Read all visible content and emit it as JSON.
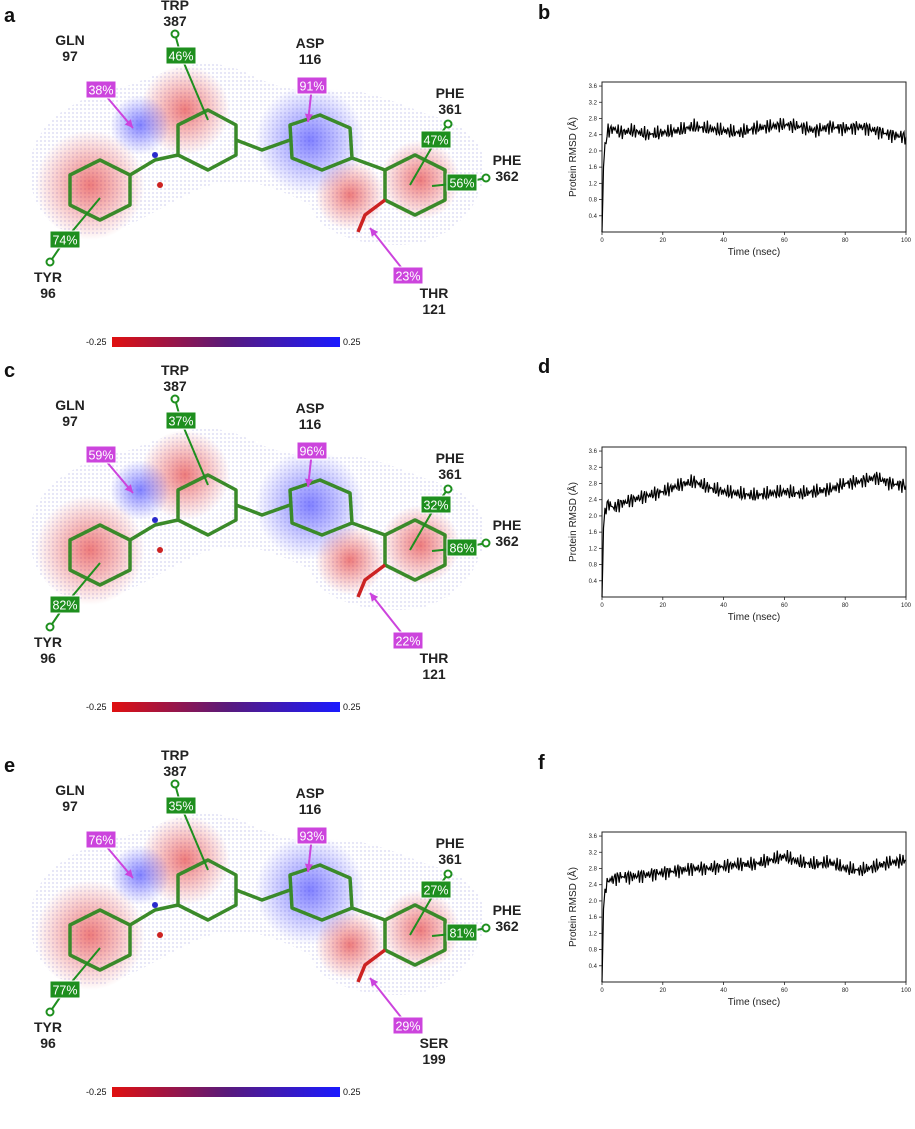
{
  "colors": {
    "green": "#1e8f1e",
    "magenta": "#cc44dd",
    "negative": "#e01010",
    "positive": "#1a1aff"
  },
  "scale_bar": {
    "min": "-0.25",
    "max": "0.25"
  },
  "panels": [
    {
      "letter": "a",
      "residues": {
        "gln": [
          "GLN",
          "97"
        ],
        "trp": [
          "TRP",
          "387"
        ],
        "asp": [
          "ASP",
          "116"
        ],
        "phe361": [
          "PHE",
          "361"
        ],
        "phe362": [
          "PHE",
          "362"
        ],
        "tyr": [
          "TYR",
          "96"
        ],
        "bottom": [
          "THR",
          "121"
        ]
      },
      "badges": {
        "gln": "38%",
        "trp": "46%",
        "asp": "91%",
        "phe361": "47%",
        "phe362": "56%",
        "tyr": "74%",
        "bottom": "23%"
      }
    },
    {
      "letter": "c",
      "residues": {
        "gln": [
          "GLN",
          "97"
        ],
        "trp": [
          "TRP",
          "387"
        ],
        "asp": [
          "ASP",
          "116"
        ],
        "phe361": [
          "PHE",
          "361"
        ],
        "phe362": [
          "PHE",
          "362"
        ],
        "tyr": [
          "TYR",
          "96"
        ],
        "bottom": [
          "THR",
          "121"
        ]
      },
      "badges": {
        "gln": "59%",
        "trp": "37%",
        "asp": "96%",
        "phe361": "32%",
        "phe362": "86%",
        "tyr": "82%",
        "bottom": "22%"
      }
    },
    {
      "letter": "e",
      "residues": {
        "gln": [
          "GLN",
          "97"
        ],
        "trp": [
          "TRP",
          "387"
        ],
        "asp": [
          "ASP",
          "116"
        ],
        "phe361": [
          "PHE",
          "361"
        ],
        "phe362": [
          "PHE",
          "362"
        ],
        "tyr": [
          "TYR",
          "96"
        ],
        "bottom": [
          "SER",
          "199"
        ]
      },
      "badges": {
        "gln": "76%",
        "trp": "35%",
        "asp": "93%",
        "phe361": "27%",
        "phe362": "81%",
        "tyr": "77%",
        "bottom": "29%"
      }
    }
  ],
  "chart_data": [
    {
      "type": "line",
      "panel": "b",
      "xlabel": "Time (nsec)",
      "ylabel": "Protein RMSD (Å)",
      "xlim": [
        0,
        100
      ],
      "ylim": [
        0,
        3.7
      ],
      "x_ticks": [
        0,
        20,
        40,
        60,
        80,
        100
      ],
      "y_ticks": [
        0.4,
        0.8,
        1.2,
        1.6,
        2.0,
        2.4,
        2.8,
        3.2,
        3.6
      ],
      "series": [
        {
          "x": [
            0,
            0.5,
            1,
            2,
            4,
            6,
            10,
            15,
            20,
            25,
            30,
            35,
            40,
            45,
            50,
            55,
            60,
            65,
            70,
            75,
            80,
            85,
            90,
            95,
            100
          ],
          "y": [
            0.0,
            1.6,
            2.2,
            2.5,
            2.55,
            2.45,
            2.5,
            2.4,
            2.45,
            2.5,
            2.6,
            2.55,
            2.5,
            2.45,
            2.55,
            2.6,
            2.65,
            2.6,
            2.5,
            2.6,
            2.55,
            2.6,
            2.5,
            2.4,
            2.35
          ]
        }
      ]
    },
    {
      "type": "line",
      "panel": "d",
      "xlabel": "Time (nsec)",
      "ylabel": "Protein RMSD (Å)",
      "xlim": [
        0,
        100
      ],
      "ylim": [
        0,
        3.7
      ],
      "x_ticks": [
        0,
        20,
        40,
        60,
        80,
        100
      ],
      "y_ticks": [
        0.4,
        0.8,
        1.2,
        1.6,
        2.0,
        2.4,
        2.8,
        3.2,
        3.6
      ],
      "series": [
        {
          "x": [
            0,
            0.5,
            1,
            2,
            4,
            6,
            10,
            15,
            20,
            25,
            30,
            35,
            40,
            45,
            50,
            55,
            60,
            65,
            70,
            75,
            80,
            85,
            90,
            95,
            100
          ],
          "y": [
            0.0,
            1.7,
            2.2,
            2.3,
            2.2,
            2.3,
            2.4,
            2.5,
            2.6,
            2.75,
            2.85,
            2.7,
            2.6,
            2.55,
            2.5,
            2.55,
            2.6,
            2.55,
            2.6,
            2.65,
            2.8,
            2.85,
            2.95,
            2.8,
            2.75
          ]
        }
      ]
    },
    {
      "type": "line",
      "panel": "f",
      "xlabel": "Time (nsec)",
      "ylabel": "Protein RMSD (Å)",
      "xlim": [
        0,
        100
      ],
      "ylim": [
        0,
        3.7
      ],
      "x_ticks": [
        0,
        20,
        40,
        60,
        80,
        100
      ],
      "y_ticks": [
        0.4,
        0.8,
        1.2,
        1.6,
        2.0,
        2.4,
        2.8,
        3.2,
        3.6
      ],
      "series": [
        {
          "x": [
            0,
            0.5,
            1,
            2,
            4,
            6,
            10,
            15,
            20,
            25,
            30,
            35,
            40,
            45,
            50,
            55,
            60,
            65,
            70,
            75,
            80,
            85,
            90,
            95,
            100
          ],
          "y": [
            0.0,
            1.8,
            2.3,
            2.5,
            2.55,
            2.6,
            2.6,
            2.65,
            2.7,
            2.75,
            2.8,
            2.8,
            2.85,
            2.9,
            2.9,
            3.0,
            3.1,
            2.95,
            2.9,
            2.95,
            2.8,
            2.75,
            2.85,
            2.95,
            3.0
          ]
        }
      ]
    }
  ]
}
